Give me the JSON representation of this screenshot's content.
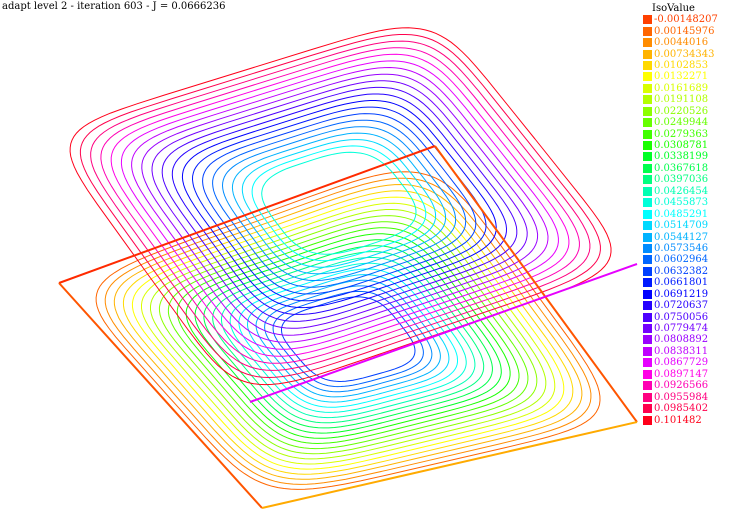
{
  "header": {
    "title": "adapt level 2 - iteration 603 - J = 0.0666236"
  },
  "legend": {
    "title": "IsoValue",
    "entries": [
      {
        "label": "-0.00148207",
        "color": "#ff4000"
      },
      {
        "label": "0.00145976",
        "color": "#ff6600"
      },
      {
        "label": "0.0044016",
        "color": "#ff8c00"
      },
      {
        "label": "0.00734343",
        "color": "#ffb300"
      },
      {
        "label": "0.0102853",
        "color": "#ffd900"
      },
      {
        "label": "0.0132271",
        "color": "#ffff00"
      },
      {
        "label": "0.0161689",
        "color": "#d9ff00"
      },
      {
        "label": "0.0191108",
        "color": "#b3ff00"
      },
      {
        "label": "0.0220526",
        "color": "#8cff00"
      },
      {
        "label": "0.0249944",
        "color": "#66ff00"
      },
      {
        "label": "0.0279363",
        "color": "#40ff00"
      },
      {
        "label": "0.0308781",
        "color": "#1aff00"
      },
      {
        "label": "0.0338199",
        "color": "#00ff26"
      },
      {
        "label": "0.0367618",
        "color": "#00ff4d"
      },
      {
        "label": "0.0397036",
        "color": "#00ff80"
      },
      {
        "label": "0.0426454",
        "color": "#00ffb3"
      },
      {
        "label": "0.0455873",
        "color": "#00ffd9"
      },
      {
        "label": "0.0485291",
        "color": "#00ffff"
      },
      {
        "label": "0.0514709",
        "color": "#00d9ff"
      },
      {
        "label": "0.0544127",
        "color": "#00b3ff"
      },
      {
        "label": "0.0573546",
        "color": "#008cff"
      },
      {
        "label": "0.0602964",
        "color": "#0066ff"
      },
      {
        "label": "0.0632382",
        "color": "#0040ff"
      },
      {
        "label": "0.0661801",
        "color": "#001aff"
      },
      {
        "label": "0.0691219",
        "color": "#0000ff"
      },
      {
        "label": "0.0720637",
        "color": "#2600ff"
      },
      {
        "label": "0.0750056",
        "color": "#4d00ff"
      },
      {
        "label": "0.0779474",
        "color": "#7300ff"
      },
      {
        "label": "0.0808892",
        "color": "#9900ff"
      },
      {
        "label": "0.0838311",
        "color": "#bf00ff"
      },
      {
        "label": "0.0867729",
        "color": "#e600ff"
      },
      {
        "label": "0.0897147",
        "color": "#ff00e6"
      },
      {
        "label": "0.0926566",
        "color": "#ff00b3"
      },
      {
        "label": "0.0955984",
        "color": "#ff0080"
      },
      {
        "label": "0.0985402",
        "color": "#ff004d"
      },
      {
        "label": "0.101482",
        "color": "#ff001a"
      }
    ]
  }
}
